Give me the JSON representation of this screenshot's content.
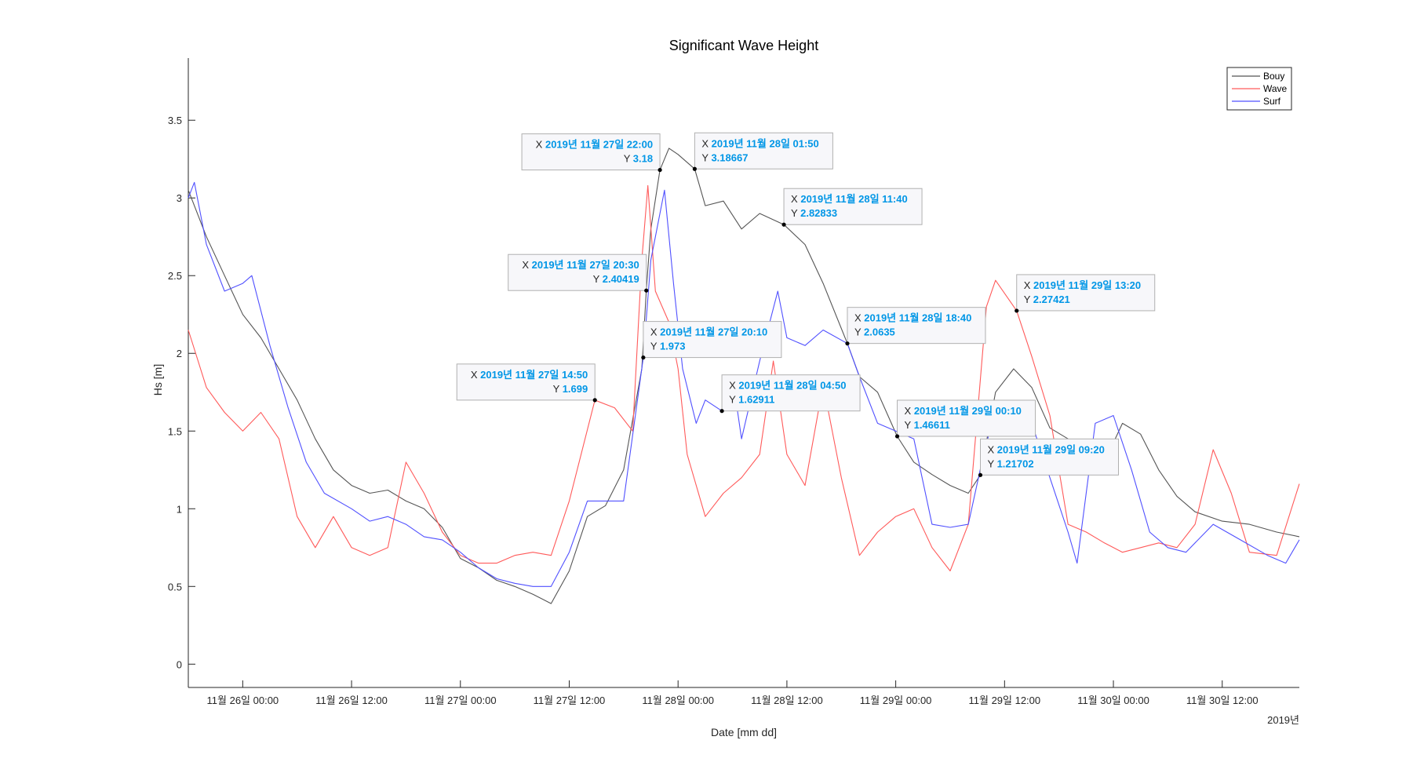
{
  "chart_data": {
    "type": "line",
    "title": "Significant Wave Height",
    "xlabel": "Date [mm dd]",
    "ylabel": "Hs [m]",
    "x_axis_year_label": "2019년",
    "xlim": [
      "2019-11-25 18:00",
      "2019-11-30 20:30"
    ],
    "ylim": [
      -0.15,
      3.9
    ],
    "x_ticks": [
      {
        "value": "2019-11-26 00:00",
        "label": "11월 26일 00:00"
      },
      {
        "value": "2019-11-26 12:00",
        "label": "11월 26일 12:00"
      },
      {
        "value": "2019-11-27 00:00",
        "label": "11월 27일 00:00"
      },
      {
        "value": "2019-11-27 12:00",
        "label": "11월 27일 12:00"
      },
      {
        "value": "2019-11-28 00:00",
        "label": "11월 28일 00:00"
      },
      {
        "value": "2019-11-28 12:00",
        "label": "11월 28일 12:00"
      },
      {
        "value": "2019-11-29 00:00",
        "label": "11월 29일 00:00"
      },
      {
        "value": "2019-11-29 12:00",
        "label": "11월 29일 12:00"
      },
      {
        "value": "2019-11-30 00:00",
        "label": "11월 30일 00:00"
      },
      {
        "value": "2019-11-30 12:00",
        "label": "11월 30일 12:00"
      }
    ],
    "y_ticks": [
      {
        "value": 0,
        "label": "0"
      },
      {
        "value": 0.5,
        "label": "0.5"
      },
      {
        "value": 1,
        "label": "1"
      },
      {
        "value": 1.5,
        "label": "1.5"
      },
      {
        "value": 2,
        "label": "2"
      },
      {
        "value": 2.5,
        "label": "2.5"
      },
      {
        "value": 3,
        "label": "3"
      },
      {
        "value": 3.5,
        "label": "3.5"
      }
    ],
    "grid": false,
    "legend": {
      "position": "top-right"
    },
    "series": [
      {
        "name": "Bouy",
        "color": "#555555",
        "points": [
          [
            "2019-11-25 18:00",
            3.05
          ],
          [
            "2019-11-25 20:00",
            2.75
          ],
          [
            "2019-11-25 22:00",
            2.5
          ],
          [
            "2019-11-26 00:00",
            2.25
          ],
          [
            "2019-11-26 02:00",
            2.1
          ],
          [
            "2019-11-26 04:00",
            1.9
          ],
          [
            "2019-11-26 06:00",
            1.7
          ],
          [
            "2019-11-26 08:00",
            1.45
          ],
          [
            "2019-11-26 10:00",
            1.25
          ],
          [
            "2019-11-26 12:00",
            1.15
          ],
          [
            "2019-11-26 14:00",
            1.1
          ],
          [
            "2019-11-26 16:00",
            1.12
          ],
          [
            "2019-11-26 18:00",
            1.05
          ],
          [
            "2019-11-26 20:00",
            1.0
          ],
          [
            "2019-11-26 22:00",
            0.88
          ],
          [
            "2019-11-27 00:00",
            0.68
          ],
          [
            "2019-11-27 02:00",
            0.62
          ],
          [
            "2019-11-27 04:00",
            0.54
          ],
          [
            "2019-11-27 06:00",
            0.5
          ],
          [
            "2019-11-27 08:00",
            0.45
          ],
          [
            "2019-11-27 10:00",
            0.39
          ],
          [
            "2019-11-27 12:00",
            0.6
          ],
          [
            "2019-11-27 14:00",
            0.95
          ],
          [
            "2019-11-27 16:00",
            1.02
          ],
          [
            "2019-11-27 18:00",
            1.25
          ],
          [
            "2019-11-27 20:00",
            1.9
          ],
          [
            "2019-11-27 20:30",
            2.40419
          ],
          [
            "2019-11-27 21:00",
            2.8
          ],
          [
            "2019-11-27 22:00",
            3.18
          ],
          [
            "2019-11-27 23:00",
            3.32
          ],
          [
            "2019-11-28 00:00",
            3.28
          ],
          [
            "2019-11-28 01:50",
            3.18667
          ],
          [
            "2019-11-28 03:00",
            2.95
          ],
          [
            "2019-11-28 05:00",
            2.98
          ],
          [
            "2019-11-28 07:00",
            2.8
          ],
          [
            "2019-11-28 09:00",
            2.9
          ],
          [
            "2019-11-28 11:40",
            2.82833
          ],
          [
            "2019-11-28 14:00",
            2.7
          ],
          [
            "2019-11-28 16:00",
            2.45
          ],
          [
            "2019-11-28 18:40",
            2.0635
          ],
          [
            "2019-11-28 20:00",
            1.85
          ],
          [
            "2019-11-28 22:00",
            1.75
          ],
          [
            "2019-11-29 00:10",
            1.46611
          ],
          [
            "2019-11-29 02:00",
            1.3
          ],
          [
            "2019-11-29 04:00",
            1.22
          ],
          [
            "2019-11-29 06:00",
            1.15
          ],
          [
            "2019-11-29 08:00",
            1.1
          ],
          [
            "2019-11-29 09:20",
            1.21702
          ],
          [
            "2019-11-29 11:00",
            1.75
          ],
          [
            "2019-11-29 13:00",
            1.9
          ],
          [
            "2019-11-29 15:00",
            1.78
          ],
          [
            "2019-11-29 17:00",
            1.52
          ],
          [
            "2019-11-29 19:00",
            1.45
          ],
          [
            "2019-11-29 21:00",
            1.4
          ],
          [
            "2019-11-29 23:00",
            1.3
          ],
          [
            "2019-11-30 01:00",
            1.55
          ],
          [
            "2019-11-30 03:00",
            1.48
          ],
          [
            "2019-11-30 05:00",
            1.25
          ],
          [
            "2019-11-30 07:00",
            1.08
          ],
          [
            "2019-11-30 09:00",
            0.98
          ],
          [
            "2019-11-30 12:00",
            0.92
          ],
          [
            "2019-11-30 15:00",
            0.9
          ],
          [
            "2019-11-30 18:00",
            0.85
          ],
          [
            "2019-11-30 20:30",
            0.82
          ]
        ]
      },
      {
        "name": "Wave",
        "color": "#ff5a5a",
        "points": [
          [
            "2019-11-25 18:00",
            2.15
          ],
          [
            "2019-11-25 20:00",
            1.78
          ],
          [
            "2019-11-25 22:00",
            1.62
          ],
          [
            "2019-11-26 00:00",
            1.5
          ],
          [
            "2019-11-26 02:00",
            1.62
          ],
          [
            "2019-11-26 04:00",
            1.45
          ],
          [
            "2019-11-26 06:00",
            0.95
          ],
          [
            "2019-11-26 08:00",
            0.75
          ],
          [
            "2019-11-26 10:00",
            0.95
          ],
          [
            "2019-11-26 12:00",
            0.75
          ],
          [
            "2019-11-26 14:00",
            0.7
          ],
          [
            "2019-11-26 16:00",
            0.75
          ],
          [
            "2019-11-26 18:00",
            1.3
          ],
          [
            "2019-11-26 20:00",
            1.1
          ],
          [
            "2019-11-26 22:00",
            0.85
          ],
          [
            "2019-11-27 00:00",
            0.7
          ],
          [
            "2019-11-27 02:00",
            0.65
          ],
          [
            "2019-11-27 04:00",
            0.65
          ],
          [
            "2019-11-27 06:00",
            0.7
          ],
          [
            "2019-11-27 08:00",
            0.72
          ],
          [
            "2019-11-27 10:00",
            0.7
          ],
          [
            "2019-11-27 12:00",
            1.05
          ],
          [
            "2019-11-27 14:50",
            1.699
          ],
          [
            "2019-11-27 17:00",
            1.65
          ],
          [
            "2019-11-27 19:00",
            1.5
          ],
          [
            "2019-11-27 20:00",
            2.6
          ],
          [
            "2019-11-27 20:40",
            3.08
          ],
          [
            "2019-11-27 21:30",
            2.4
          ],
          [
            "2019-11-27 23:00",
            2.2
          ],
          [
            "2019-11-28 00:00",
            1.9
          ],
          [
            "2019-11-28 01:00",
            1.35
          ],
          [
            "2019-11-28 03:00",
            0.95
          ],
          [
            "2019-11-28 05:00",
            1.1
          ],
          [
            "2019-11-28 07:00",
            1.2
          ],
          [
            "2019-11-28 09:00",
            1.35
          ],
          [
            "2019-11-28 10:30",
            1.95
          ],
          [
            "2019-11-28 12:00",
            1.35
          ],
          [
            "2019-11-28 14:00",
            1.15
          ],
          [
            "2019-11-28 16:00",
            1.8
          ],
          [
            "2019-11-28 18:00",
            1.2
          ],
          [
            "2019-11-28 20:00",
            0.7
          ],
          [
            "2019-11-28 22:00",
            0.85
          ],
          [
            "2019-11-29 00:00",
            0.95
          ],
          [
            "2019-11-29 02:00",
            1.0
          ],
          [
            "2019-11-29 04:00",
            0.75
          ],
          [
            "2019-11-29 06:00",
            0.6
          ],
          [
            "2019-11-29 08:00",
            0.9
          ],
          [
            "2019-11-29 10:00",
            2.3
          ],
          [
            "2019-11-29 11:00",
            2.47
          ],
          [
            "2019-11-29 13:20",
            2.27421
          ],
          [
            "2019-11-29 15:00",
            1.98
          ],
          [
            "2019-11-29 17:00",
            1.6
          ],
          [
            "2019-11-29 19:00",
            0.9
          ],
          [
            "2019-11-29 21:00",
            0.85
          ],
          [
            "2019-11-29 23:00",
            0.78
          ],
          [
            "2019-11-30 01:00",
            0.72
          ],
          [
            "2019-11-30 03:00",
            0.75
          ],
          [
            "2019-11-30 05:00",
            0.78
          ],
          [
            "2019-11-30 07:00",
            0.75
          ],
          [
            "2019-11-30 09:00",
            0.9
          ],
          [
            "2019-11-30 11:00",
            1.38
          ],
          [
            "2019-11-30 13:00",
            1.1
          ],
          [
            "2019-11-30 15:00",
            0.72
          ],
          [
            "2019-11-30 18:00",
            0.7
          ],
          [
            "2019-11-30 20:30",
            1.16
          ]
        ]
      },
      {
        "name": "Surf",
        "color": "#5050ff",
        "points": [
          [
            "2019-11-25 18:00",
            3.0
          ],
          [
            "2019-11-25 18:40",
            3.1
          ],
          [
            "2019-11-25 20:00",
            2.7
          ],
          [
            "2019-11-25 22:00",
            2.4
          ],
          [
            "2019-11-26 00:00",
            2.45
          ],
          [
            "2019-11-26 01:00",
            2.5
          ],
          [
            "2019-11-26 03:00",
            2.05
          ],
          [
            "2019-11-26 05:00",
            1.65
          ],
          [
            "2019-11-26 07:00",
            1.3
          ],
          [
            "2019-11-26 09:00",
            1.1
          ],
          [
            "2019-11-26 12:00",
            1.0
          ],
          [
            "2019-11-26 14:00",
            0.92
          ],
          [
            "2019-11-26 16:00",
            0.95
          ],
          [
            "2019-11-26 18:00",
            0.9
          ],
          [
            "2019-11-26 20:00",
            0.82
          ],
          [
            "2019-11-26 22:00",
            0.8
          ],
          [
            "2019-11-27 00:00",
            0.72
          ],
          [
            "2019-11-27 02:00",
            0.62
          ],
          [
            "2019-11-27 04:00",
            0.55
          ],
          [
            "2019-11-27 06:00",
            0.52
          ],
          [
            "2019-11-27 08:00",
            0.5
          ],
          [
            "2019-11-27 10:00",
            0.5
          ],
          [
            "2019-11-27 12:00",
            0.72
          ],
          [
            "2019-11-27 14:00",
            1.05
          ],
          [
            "2019-11-27 16:00",
            1.05
          ],
          [
            "2019-11-27 18:00",
            1.05
          ],
          [
            "2019-11-27 20:10",
            1.973
          ],
          [
            "2019-11-27 21:00",
            2.6
          ],
          [
            "2019-11-27 22:30",
            3.05
          ],
          [
            "2019-11-27 23:30",
            2.45
          ],
          [
            "2019-11-28 00:30",
            1.9
          ],
          [
            "2019-11-28 02:00",
            1.55
          ],
          [
            "2019-11-28 03:00",
            1.7
          ],
          [
            "2019-11-28 04:50",
            1.62911
          ],
          [
            "2019-11-28 06:00",
            1.85
          ],
          [
            "2019-11-28 07:00",
            1.45
          ],
          [
            "2019-11-28 09:00",
            1.95
          ],
          [
            "2019-11-28 11:00",
            2.4
          ],
          [
            "2019-11-28 12:00",
            2.1
          ],
          [
            "2019-11-28 14:00",
            2.05
          ],
          [
            "2019-11-28 16:00",
            2.15
          ],
          [
            "2019-11-28 18:40",
            2.0635
          ],
          [
            "2019-11-28 20:00",
            1.85
          ],
          [
            "2019-11-28 22:00",
            1.55
          ],
          [
            "2019-11-29 00:00",
            1.5
          ],
          [
            "2019-11-29 02:00",
            1.45
          ],
          [
            "2019-11-29 04:00",
            0.9
          ],
          [
            "2019-11-29 06:00",
            0.88
          ],
          [
            "2019-11-29 08:00",
            0.9
          ],
          [
            "2019-11-29 09:30",
            1.3
          ],
          [
            "2019-11-29 11:00",
            1.65
          ],
          [
            "2019-11-29 13:00",
            1.55
          ],
          [
            "2019-11-29 15:00",
            1.55
          ],
          [
            "2019-11-29 17:00",
            1.2
          ],
          [
            "2019-11-29 19:00",
            0.85
          ],
          [
            "2019-11-29 20:00",
            0.65
          ],
          [
            "2019-11-29 22:00",
            1.55
          ],
          [
            "2019-11-30 00:00",
            1.6
          ],
          [
            "2019-11-30 02:00",
            1.25
          ],
          [
            "2019-11-30 04:00",
            0.85
          ],
          [
            "2019-11-30 06:00",
            0.75
          ],
          [
            "2019-11-30 08:00",
            0.72
          ],
          [
            "2019-11-30 11:00",
            0.9
          ],
          [
            "2019-11-30 14:00",
            0.8
          ],
          [
            "2019-11-30 17:00",
            0.7
          ],
          [
            "2019-11-30 19:00",
            0.65
          ],
          [
            "2019-11-30 20:30",
            0.8
          ]
        ]
      }
    ],
    "datatips": [
      {
        "x_label": "2019년 11월 27일 22:00",
        "y_label": "3.18",
        "x": "2019-11-27 22:00",
        "y": 3.18,
        "side": "left",
        "align": "right"
      },
      {
        "x_label": "2019년 11월 28일 01:50",
        "y_label": "3.18667",
        "x": "2019-11-28 01:50",
        "y": 3.18667,
        "side": "right",
        "align": "left"
      },
      {
        "x_label": "2019년 11월 28일 11:40",
        "y_label": "2.82833",
        "x": "2019-11-28 11:40",
        "y": 2.82833,
        "side": "right",
        "align": "left"
      },
      {
        "x_label": "2019년 11월 27일 20:30",
        "y_label": "2.40419",
        "x": "2019-11-27 20:30",
        "y": 2.40419,
        "side": "left",
        "align": "right"
      },
      {
        "x_label": "2019년 11월 27일 20:10",
        "y_label": "1.973",
        "x": "2019-11-27 20:10",
        "y": 1.973,
        "side": "right",
        "align": "left"
      },
      {
        "x_label": "2019년 11월 29일 13:20",
        "y_label": "2.27421",
        "x": "2019-11-29 13:20",
        "y": 2.27421,
        "side": "right",
        "align": "left"
      },
      {
        "x_label": "2019년 11월 28일 18:40",
        "y_label": "2.0635",
        "x": "2019-11-28 18:40",
        "y": 2.0635,
        "side": "right",
        "align": "left"
      },
      {
        "x_label": "2019년 11월 27일 14:50",
        "y_label": "1.699",
        "x": "2019-11-27 14:50",
        "y": 1.699,
        "side": "left",
        "align": "right"
      },
      {
        "x_label": "2019년 11월 28일 04:50",
        "y_label": "1.62911",
        "x": "2019-11-28 04:50",
        "y": 1.62911,
        "side": "right",
        "align": "left"
      },
      {
        "x_label": "2019년 11월 29일 00:10",
        "y_label": "1.46611",
        "x": "2019-11-29 00:10",
        "y": 1.46611,
        "side": "right",
        "align": "left"
      },
      {
        "x_label": "2019년 11월 29일 09:20",
        "y_label": "1.21702",
        "x": "2019-11-29 09:20",
        "y": 1.21702,
        "side": "right",
        "align": "left"
      }
    ],
    "datatip_colors": {
      "prefix": "#262626",
      "value": "#0096e6",
      "box_fill": "#f7f7fa",
      "box_stroke": "#b0b0b0",
      "marker": "#000000"
    }
  }
}
